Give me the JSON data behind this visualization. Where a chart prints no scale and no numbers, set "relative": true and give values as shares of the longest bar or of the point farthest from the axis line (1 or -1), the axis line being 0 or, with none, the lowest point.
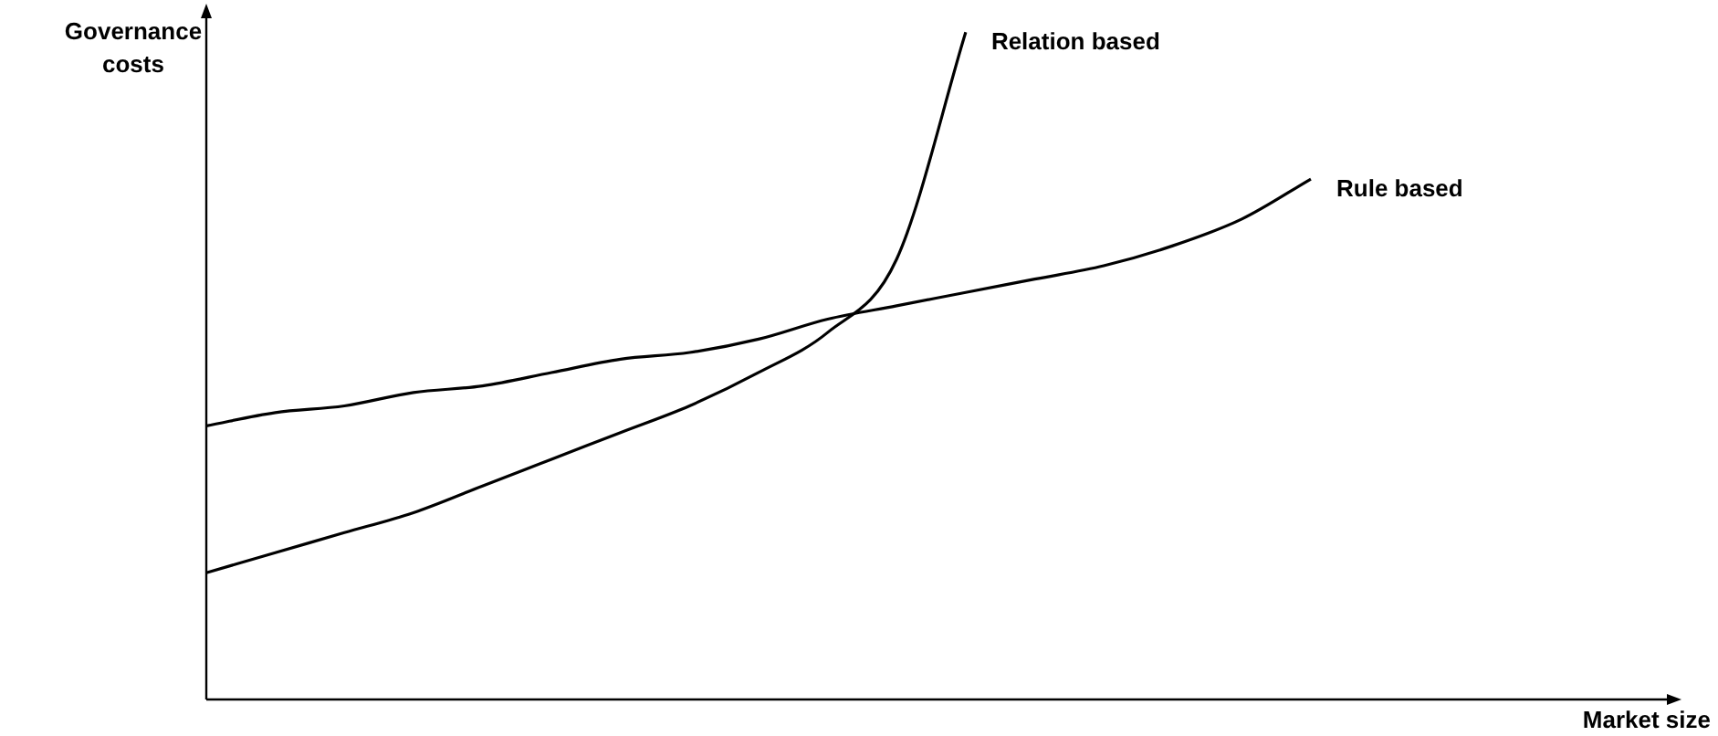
{
  "chart_data": {
    "type": "line",
    "relative": true,
    "annotations": [
      "Market size"
    ],
    "ylabel": "Governance costs",
    "categories": [
      null,
      null,
      null,
      null,
      null,
      null,
      null,
      null,
      null,
      null,
      null,
      null,
      null,
      null,
      null,
      null,
      null
    ],
    "series": [
      {
        "name": "Relation based",
        "color": "#000000",
        "values": [
          0.19,
          0.22,
          0.25,
          0.28,
          0.32,
          0.36,
          0.4,
          0.44,
          0.49,
          0.55,
          0.66,
          1,
          null,
          null,
          null,
          null,
          null
        ]
      },
      {
        "name": "Rule based",
        "color": "#000000",
        "values": [
          0.41,
          0.43,
          0.44,
          0.46,
          0.47,
          0.49,
          0.51,
          0.52,
          0.54,
          0.57,
          0.59,
          0.61,
          0.63,
          0.65,
          0.68,
          0.72,
          0.78
        ]
      }
    ],
    "grid": false,
    "legend": false,
    "marker": "none",
    "line_style": "solid"
  }
}
